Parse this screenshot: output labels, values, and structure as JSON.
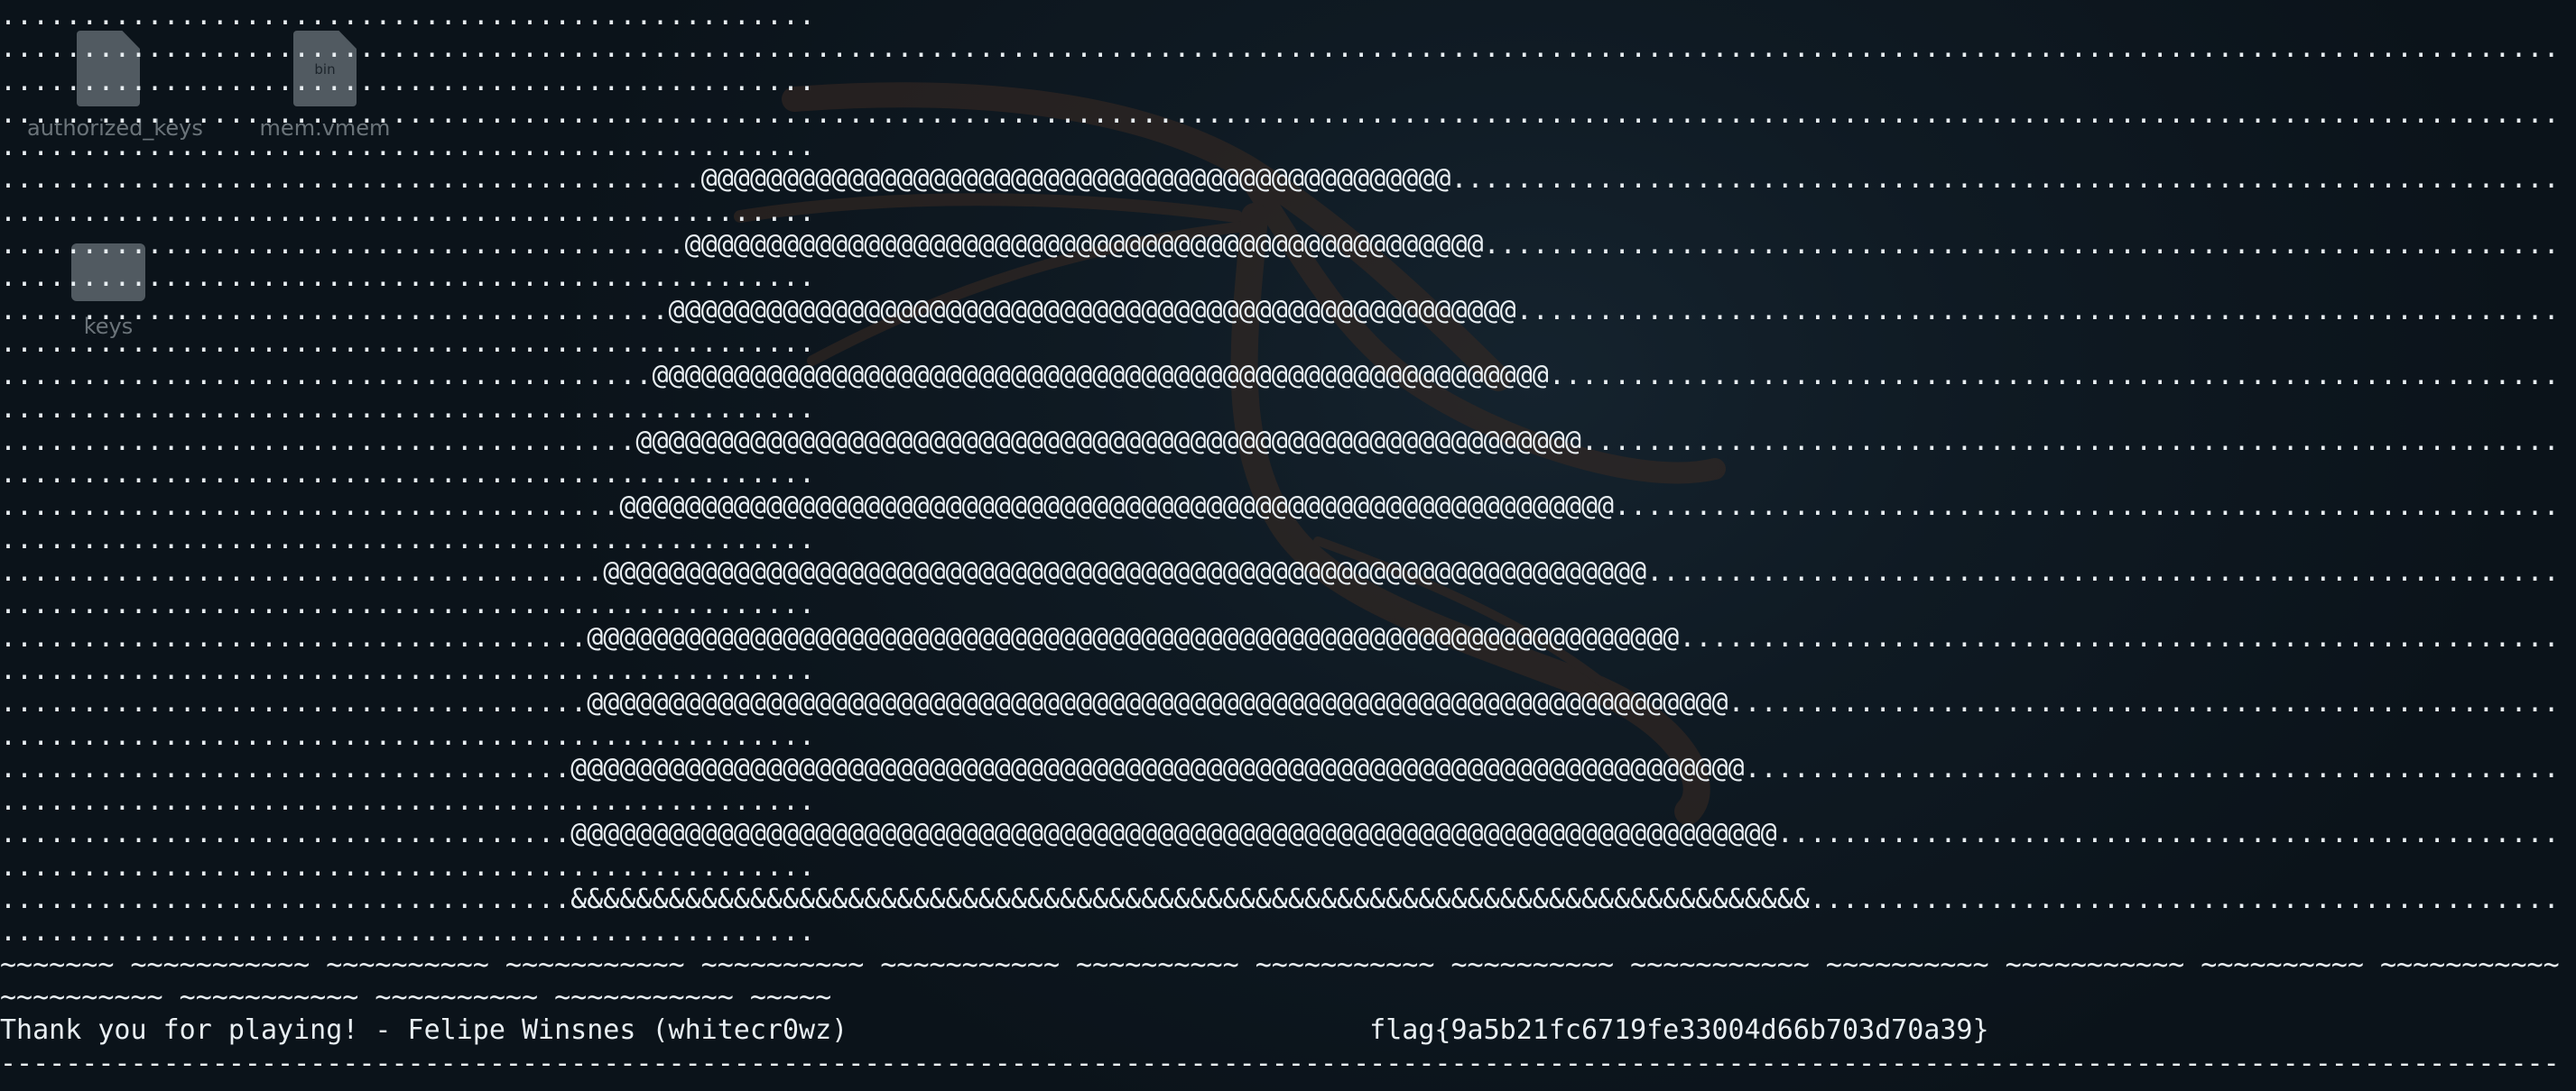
{
  "desktop": {
    "icons": [
      {
        "label": "authorized_keys",
        "icon": "text-file-icon"
      },
      {
        "label": "mem.vmem",
        "icon": "binary-file-icon",
        "ext": "bin"
      },
      {
        "label": "keys",
        "icon": "folder-icon"
      }
    ],
    "wallpaper_logo": "kali-dragon-icon"
  },
  "terminal": {
    "art_rows": [
      {
        "lead": 43,
        "glyph": "@",
        "count": 46
      },
      {
        "lead": 42,
        "glyph": "@",
        "count": 49
      },
      {
        "lead": 41,
        "glyph": "@",
        "count": 52
      },
      {
        "lead": 40,
        "glyph": "@",
        "count": 55
      },
      {
        "lead": 39,
        "glyph": "@",
        "count": 58
      },
      {
        "lead": 38,
        "glyph": "@",
        "count": 61
      },
      {
        "lead": 37,
        "glyph": "@",
        "count": 64
      },
      {
        "lead": 36,
        "glyph": "@",
        "count": 67
      },
      {
        "lead": 36,
        "glyph": "@",
        "count": 70
      },
      {
        "lead": 35,
        "glyph": "@",
        "count": 72
      },
      {
        "lead": 35,
        "glyph": "@",
        "count": 74
      },
      {
        "lead": 35,
        "glyph": "&",
        "count": 76
      }
    ],
    "tilde_line_1": "~~~~~~~ ~~~~~~~~~~~ ~~~~~~~~~~ ~~~~~~~~~~~ ~~~~~~~~~~ ~~~~~~~~~~~ ~~~~~~~~~~ ~~~~~~~~~~~ ~~~~~~~~~~ ~~~~~~~~~~~ ~~~~~~~~~~ ~~~~~~~~~~~ ~~~~~~~~~~ ~~~~~~~~~~~",
    "tilde_line_2": "~~~~~~~~~~ ~~~~~~~~~~~ ~~~~~~~~~~ ~~~~~~~~~~~ ~~~~~",
    "credits": "Thank you for playing! - Felipe Winsnes (whitecr0wz)",
    "flag": "flag{9a5b21fc6719fe33004d66b703d70a39}",
    "colors": {
      "text": "#e8eef2",
      "background": "#0f1a23"
    }
  }
}
